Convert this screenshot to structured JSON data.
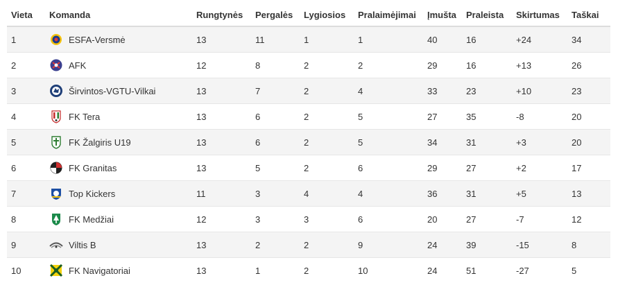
{
  "headers": [
    "Vieta",
    "Komanda",
    "Rungtynės",
    "Pergalės",
    "Lygiosios",
    "Pralaimėjimai",
    "Įmušta",
    "Praleista",
    "Skirtumas",
    "Taškai"
  ],
  "rows": [
    {
      "pos": "1",
      "team": "ESFA-Versmė",
      "logo": "esfa-versme-logo-icon",
      "played": "13",
      "won": "11",
      "draw": "1",
      "lost": "1",
      "gf": "40",
      "ga": "16",
      "diff": "+24",
      "pts": "34"
    },
    {
      "pos": "2",
      "team": "AFK",
      "logo": "afk-logo-icon",
      "played": "12",
      "won": "8",
      "draw": "2",
      "lost": "2",
      "gf": "29",
      "ga": "16",
      "diff": "+13",
      "pts": "26"
    },
    {
      "pos": "3",
      "team": "Širvintos-VGTU-Vilkai",
      "logo": "sirvintos-vilkai-logo-icon",
      "played": "13",
      "won": "7",
      "draw": "2",
      "lost": "4",
      "gf": "33",
      "ga": "23",
      "diff": "+10",
      "pts": "23"
    },
    {
      "pos": "4",
      "team": "FK Tera",
      "logo": "fk-tera-logo-icon",
      "played": "13",
      "won": "6",
      "draw": "2",
      "lost": "5",
      "gf": "27",
      "ga": "35",
      "diff": "-8",
      "pts": "20"
    },
    {
      "pos": "5",
      "team": "FK Žalgiris U19",
      "logo": "fk-zalgiris-logo-icon",
      "played": "13",
      "won": "6",
      "draw": "2",
      "lost": "5",
      "gf": "34",
      "ga": "31",
      "diff": "+3",
      "pts": "20"
    },
    {
      "pos": "6",
      "team": "FK Granitas",
      "logo": "fk-granitas-logo-icon",
      "played": "13",
      "won": "5",
      "draw": "2",
      "lost": "6",
      "gf": "29",
      "ga": "27",
      "diff": "+2",
      "pts": "17"
    },
    {
      "pos": "7",
      "team": "Top Kickers",
      "logo": "top-kickers-logo-icon",
      "played": "11",
      "won": "3",
      "draw": "4",
      "lost": "4",
      "gf": "36",
      "ga": "31",
      "diff": "+5",
      "pts": "13"
    },
    {
      "pos": "8",
      "team": "FK Medžiai",
      "logo": "fk-medziai-logo-icon",
      "played": "12",
      "won": "3",
      "draw": "3",
      "lost": "6",
      "gf": "20",
      "ga": "27",
      "diff": "-7",
      "pts": "12"
    },
    {
      "pos": "9",
      "team": "Viltis B",
      "logo": "viltis-b-logo-icon",
      "played": "13",
      "won": "2",
      "draw": "2",
      "lost": "9",
      "gf": "24",
      "ga": "39",
      "diff": "-15",
      "pts": "8"
    },
    {
      "pos": "10",
      "team": "FK Navigatoriai",
      "logo": "fk-navigatoriai-logo-icon",
      "played": "13",
      "won": "1",
      "draw": "2",
      "lost": "10",
      "gf": "24",
      "ga": "51",
      "diff": "-27",
      "pts": "5"
    }
  ]
}
